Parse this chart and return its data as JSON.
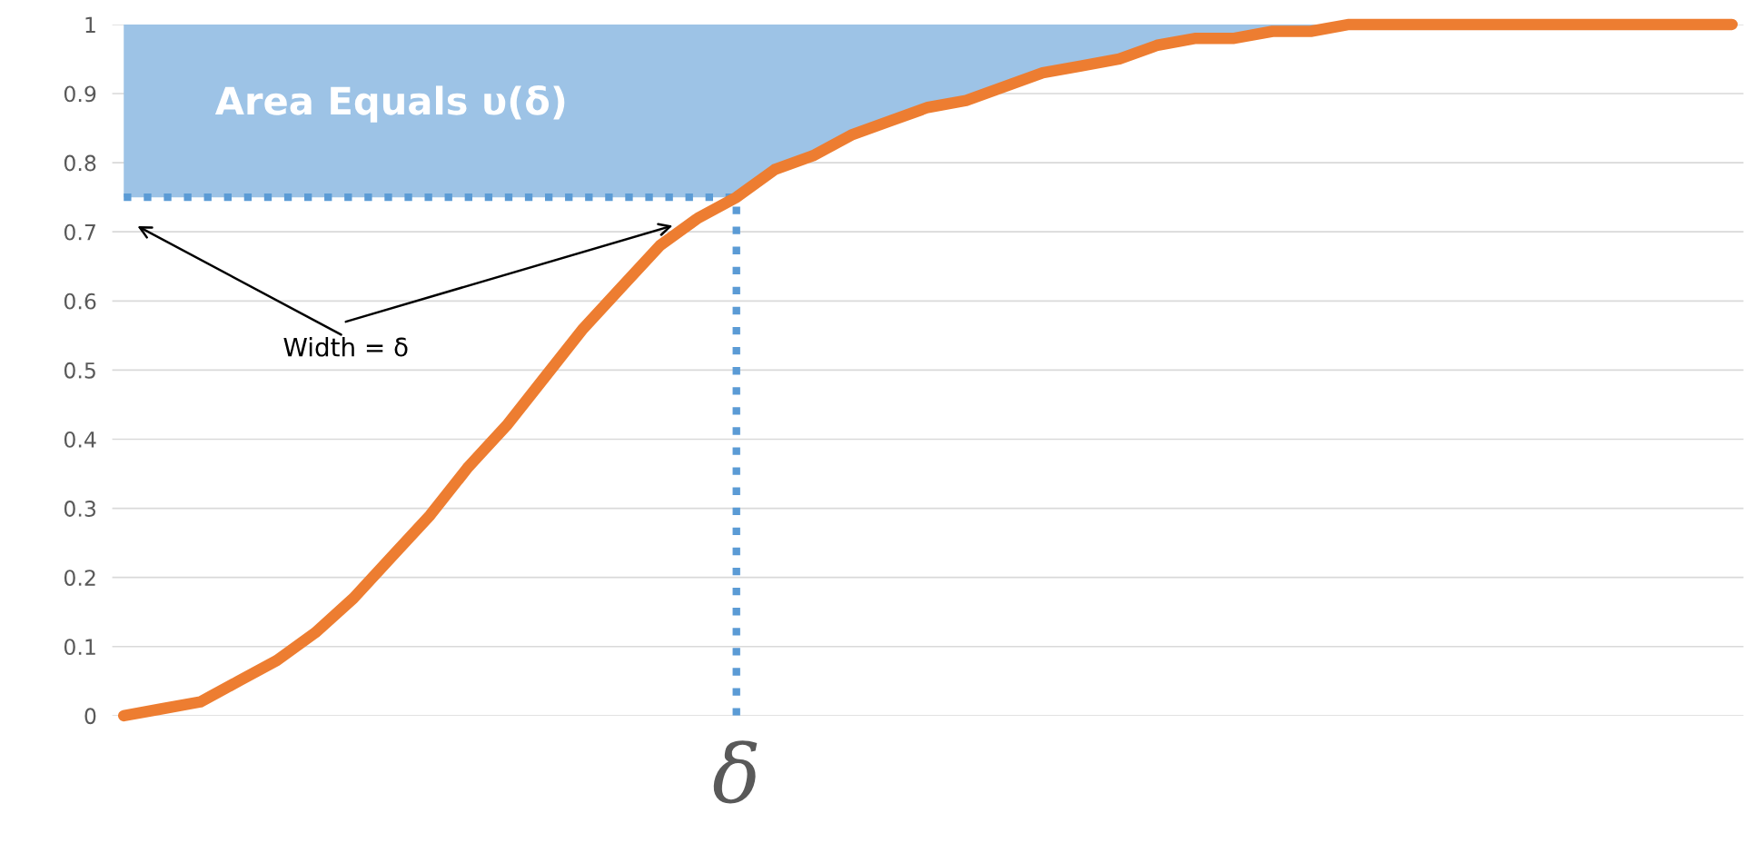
{
  "chart_data": {
    "type": "line",
    "categories": [
      null,
      null,
      null,
      null,
      null,
      null,
      null,
      null,
      null,
      null,
      null,
      null,
      null,
      null,
      null,
      null,
      null,
      null,
      null,
      null,
      null,
      null,
      null,
      null,
      null,
      null,
      null,
      null,
      null,
      null,
      null,
      null,
      null,
      null,
      null,
      null,
      null,
      null,
      null,
      null,
      null,
      null,
      null
    ],
    "series": [
      {
        "color": "#ed7d31",
        "values": [
          0,
          0.01,
          0.02,
          0.05,
          0.08,
          0.12,
          0.17,
          0.23,
          0.29,
          0.36,
          0.42,
          0.49,
          0.56,
          0.62,
          0.68,
          0.72,
          0.75,
          0.79,
          0.81,
          0.84,
          0.86,
          0.88,
          0.89,
          0.91,
          0.93,
          0.94,
          0.95,
          0.97,
          0.98,
          0.98,
          0.99,
          0.99,
          1,
          1,
          1,
          1,
          1,
          1,
          1,
          1,
          1,
          1,
          1
        ],
        "lower": [
          0.75,
          0.75,
          0.75,
          0.75,
          0.75,
          0.75,
          0.75,
          0.75,
          0.75,
          0.75,
          0.75,
          0.75,
          0.75,
          0.75,
          0.75,
          0.75,
          0.75,
          0.79,
          0.81,
          0.84,
          0.86,
          0.88,
          0.89,
          0.91,
          0.93,
          0.94,
          0.95,
          0.97,
          0.98,
          0.98,
          0.99,
          0.99,
          1,
          1,
          1,
          1,
          1,
          1,
          1,
          1,
          1,
          1,
          1
        ],
        "upper": [
          1,
          1,
          1,
          1,
          1,
          1,
          1,
          1,
          1,
          1,
          1,
          1,
          1,
          1,
          1,
          1,
          1,
          1,
          1,
          1,
          1,
          1,
          1,
          1,
          1,
          1,
          1,
          1,
          1,
          1,
          1,
          1,
          1,
          1,
          1,
          1,
          1,
          1,
          1,
          1,
          1,
          1,
          1
        ]
      }
    ],
    "ylim": [
      0,
      1
    ],
    "yticks": [
      0,
      0.1,
      0.2,
      0.3,
      0.4,
      0.5,
      0.6,
      0.7,
      0.8,
      0.9,
      1
    ],
    "ref_lines": [
      {
        "axis": "y",
        "value": 0.75,
        "label": null,
        "color": "#5b9bd5",
        "line_style": "dotted"
      }
    ],
    "annotations": [
      "Area Equals υ(δ)",
      "Width = δ",
      "δ"
    ],
    "grid": "y",
    "tick_labels": "y",
    "legend": false,
    "line_style": "solid"
  }
}
